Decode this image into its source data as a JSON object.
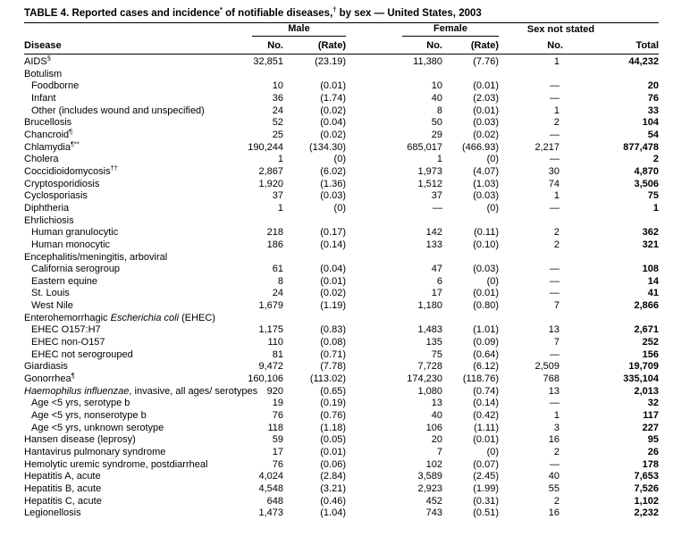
{
  "title": {
    "p1": "TABLE 4. Reported cases and incidence",
    "sup1": "*",
    "p2": " of notifiable diseases,",
    "sup2": "†",
    "p3": " by sex — United States, 2003"
  },
  "header": {
    "disease": "Disease",
    "groups": [
      {
        "label": "Male"
      },
      {
        "label": "Female"
      },
      {
        "label": "Sex not stated"
      }
    ],
    "cols": [
      "No.",
      "(Rate)",
      "No.",
      "(Rate)",
      "No.",
      "Total"
    ]
  },
  "rows": [
    {
      "parts": [
        {
          "t": "AIDS"
        },
        {
          "t": "§",
          "sup": true
        }
      ],
      "indent": 0,
      "cells": [
        "32,851",
        "(23.19)",
        "11,380",
        "(7.76)",
        "1",
        "44,232"
      ]
    },
    {
      "parts": [
        {
          "t": "Botulism"
        }
      ],
      "indent": 0,
      "cells": null
    },
    {
      "parts": [
        {
          "t": "Foodborne"
        }
      ],
      "indent": 1,
      "cells": [
        "10",
        "(0.01)",
        "10",
        "(0.01)",
        "—",
        "20"
      ]
    },
    {
      "parts": [
        {
          "t": "Infant"
        }
      ],
      "indent": 1,
      "cells": [
        "36",
        "(1.74)",
        "40",
        "(2.03)",
        "—",
        "76"
      ]
    },
    {
      "parts": [
        {
          "t": "Other (includes wound and unspecified)"
        }
      ],
      "indent": 1,
      "cells": [
        "24",
        "(0.02)",
        "8",
        "(0.01)",
        "1",
        "33"
      ]
    },
    {
      "parts": [
        {
          "t": "Brucellosis"
        }
      ],
      "indent": 0,
      "cells": [
        "52",
        "(0.04)",
        "50",
        "(0.03)",
        "2",
        "104"
      ]
    },
    {
      "parts": [
        {
          "t": "Chancroid"
        },
        {
          "t": "¶",
          "sup": true
        }
      ],
      "indent": 0,
      "cells": [
        "25",
        "(0.02)",
        "29",
        "(0.02)",
        "—",
        "54"
      ]
    },
    {
      "parts": [
        {
          "t": "Chlamydia"
        },
        {
          "t": "¶**",
          "sup": true
        }
      ],
      "indent": 0,
      "cells": [
        "190,244",
        "(134.30)",
        "685,017",
        "(466.93)",
        "2,217",
        "877,478"
      ]
    },
    {
      "parts": [
        {
          "t": "Cholera"
        }
      ],
      "indent": 0,
      "cells": [
        "1",
        "(0)",
        "1",
        "(0)",
        "—",
        "2"
      ]
    },
    {
      "parts": [
        {
          "t": "Coccidioidomycosis"
        },
        {
          "t": "††",
          "sup": true
        }
      ],
      "indent": 0,
      "cells": [
        "2,867",
        "(6.02)",
        "1,973",
        "(4.07)",
        "30",
        "4,870"
      ]
    },
    {
      "parts": [
        {
          "t": "Cryptosporidiosis"
        }
      ],
      "indent": 0,
      "cells": [
        "1,920",
        "(1.36)",
        "1,512",
        "(1.03)",
        "74",
        "3,506"
      ]
    },
    {
      "parts": [
        {
          "t": "Cyclosporiasis"
        }
      ],
      "indent": 0,
      "cells": [
        "37",
        "(0.03)",
        "37",
        "(0.03)",
        "1",
        "75"
      ]
    },
    {
      "parts": [
        {
          "t": "Diphtheria"
        }
      ],
      "indent": 0,
      "cells": [
        "1",
        "(0)",
        "—",
        "(0)",
        "—",
        "1"
      ]
    },
    {
      "parts": [
        {
          "t": "Ehrlichiosis"
        }
      ],
      "indent": 0,
      "cells": null
    },
    {
      "parts": [
        {
          "t": "Human granulocytic"
        }
      ],
      "indent": 1,
      "cells": [
        "218",
        "(0.17)",
        "142",
        "(0.11)",
        "2",
        "362"
      ]
    },
    {
      "parts": [
        {
          "t": "Human monocytic"
        }
      ],
      "indent": 1,
      "cells": [
        "186",
        "(0.14)",
        "133",
        "(0.10)",
        "2",
        "321"
      ]
    },
    {
      "parts": [
        {
          "t": "Encephalitis/meningitis, arboviral"
        }
      ],
      "indent": 0,
      "cells": null
    },
    {
      "parts": [
        {
          "t": "California serogroup"
        }
      ],
      "indent": 1,
      "cells": [
        "61",
        "(0.04)",
        "47",
        "(0.03)",
        "—",
        "108"
      ]
    },
    {
      "parts": [
        {
          "t": "Eastern equine"
        }
      ],
      "indent": 1,
      "cells": [
        "8",
        "(0.01)",
        "6",
        "(0)",
        "—",
        "14"
      ]
    },
    {
      "parts": [
        {
          "t": "St. Louis"
        }
      ],
      "indent": 1,
      "cells": [
        "24",
        "(0.02)",
        "17",
        "(0.01)",
        "—",
        "41"
      ]
    },
    {
      "parts": [
        {
          "t": "West Nile"
        }
      ],
      "indent": 1,
      "cells": [
        "1,679",
        "(1.19)",
        "1,180",
        "(0.80)",
        "7",
        "2,866"
      ]
    },
    {
      "parts": [
        {
          "t": "Enterohemorrhagic "
        },
        {
          "t": "Escherichia coli",
          "i": true
        },
        {
          "t": " (EHEC)"
        }
      ],
      "indent": 0,
      "cells": null
    },
    {
      "parts": [
        {
          "t": "EHEC O157:H7"
        }
      ],
      "indent": 1,
      "cells": [
        "1,175",
        "(0.83)",
        "1,483",
        "(1.01)",
        "13",
        "2,671"
      ]
    },
    {
      "parts": [
        {
          "t": "EHEC non-O157"
        }
      ],
      "indent": 1,
      "cells": [
        "110",
        "(0.08)",
        "135",
        "(0.09)",
        "7",
        "252"
      ]
    },
    {
      "parts": [
        {
          "t": "EHEC not serogrouped"
        }
      ],
      "indent": 1,
      "cells": [
        "81",
        "(0.71)",
        "75",
        "(0.64)",
        "—",
        "156"
      ]
    },
    {
      "parts": [
        {
          "t": "Giardiasis"
        }
      ],
      "indent": 0,
      "cells": [
        "9,472",
        "(7.78)",
        "7,728",
        "(6.12)",
        "2,509",
        "19,709"
      ]
    },
    {
      "parts": [
        {
          "t": "Gonorrhea"
        },
        {
          "t": "¶",
          "sup": true
        }
      ],
      "indent": 0,
      "cells": [
        "160,106",
        "(113.02)",
        "174,230",
        "(118.76)",
        "768",
        "335,104"
      ]
    },
    {
      "parts": [
        {
          "t": "Haemophilus influenzae",
          "i": true
        },
        {
          "t": ", invasive, all ages/ serotypes"
        }
      ],
      "indent": 0,
      "cells": [
        "920",
        "(0.65)",
        "1,080",
        "(0.74)",
        "13",
        "2,013"
      ]
    },
    {
      "parts": [
        {
          "t": "Age <5 yrs, serotype b"
        }
      ],
      "indent": 1,
      "cells": [
        "19",
        "(0.19)",
        "13",
        "(0.14)",
        "—",
        "32"
      ]
    },
    {
      "parts": [
        {
          "t": "Age <5 yrs, nonserotype b"
        }
      ],
      "indent": 1,
      "cells": [
        "76",
        "(0.76)",
        "40",
        "(0.42)",
        "1",
        "117"
      ]
    },
    {
      "parts": [
        {
          "t": "Age <5 yrs, unknown serotype"
        }
      ],
      "indent": 1,
      "cells": [
        "118",
        "(1.18)",
        "106",
        "(1.11)",
        "3",
        "227"
      ]
    },
    {
      "parts": [
        {
          "t": "Hansen disease (leprosy)"
        }
      ],
      "indent": 0,
      "cells": [
        "59",
        "(0.05)",
        "20",
        "(0.01)",
        "16",
        "95"
      ]
    },
    {
      "parts": [
        {
          "t": "Hantavirus pulmonary syndrome"
        }
      ],
      "indent": 0,
      "cells": [
        "17",
        "(0.01)",
        "7",
        "(0)",
        "2",
        "26"
      ]
    },
    {
      "parts": [
        {
          "t": "Hemolytic uremic syndrome, postdiarrheal"
        }
      ],
      "indent": 0,
      "cells": [
        "76",
        "(0.06)",
        "102",
        "(0.07)",
        "—",
        "178"
      ]
    },
    {
      "parts": [
        {
          "t": "Hepatitis A, acute"
        }
      ],
      "indent": 0,
      "cells": [
        "4,024",
        "(2.84)",
        "3,589",
        "(2.45)",
        "40",
        "7,653"
      ]
    },
    {
      "parts": [
        {
          "t": "Hepatitis B, acute"
        }
      ],
      "indent": 0,
      "cells": [
        "4,548",
        "(3.21)",
        "2,923",
        "(1.99)",
        "55",
        "7,526"
      ]
    },
    {
      "parts": [
        {
          "t": "Hepatitis C, acute"
        }
      ],
      "indent": 0,
      "cells": [
        "648",
        "(0.46)",
        "452",
        "(0.31)",
        "2",
        "1,102"
      ]
    },
    {
      "parts": [
        {
          "t": "Legionellosis"
        }
      ],
      "indent": 0,
      "cells": [
        "1,473",
        "(1.04)",
        "743",
        "(0.51)",
        "16",
        "2,232"
      ]
    }
  ]
}
